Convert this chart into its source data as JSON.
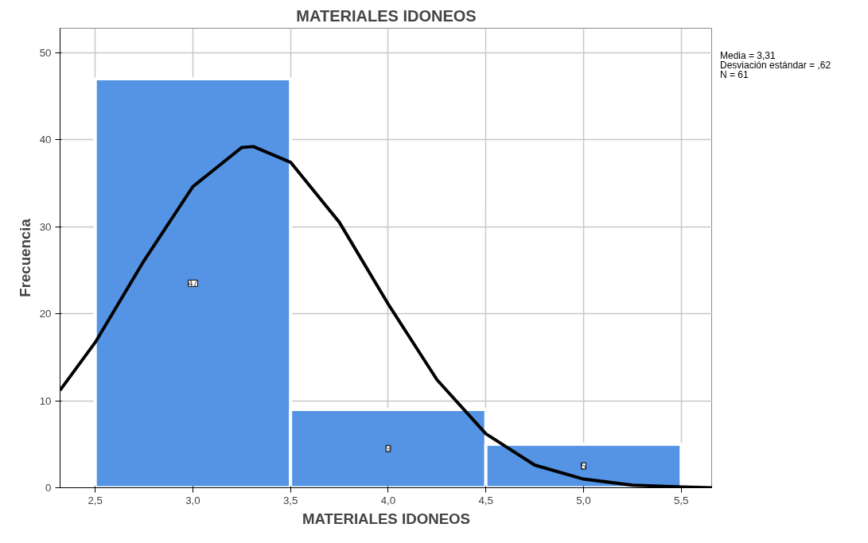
{
  "chart_data": {
    "type": "histogram",
    "title": "MATERIALES IDONEOS",
    "xlabel": "MATERIALES IDONEOS",
    "ylabel": "Frecuencia",
    "bins": [
      2.5,
      3.5,
      4.5,
      5.5
    ],
    "values": [
      47,
      9,
      5
    ],
    "color": "#5593e4",
    "value_labels": [
      "47",
      "9",
      "5"
    ],
    "series": [
      {
        "type": "line",
        "color": "#000000",
        "x": [
          2.32,
          2.5,
          2.75,
          3.0,
          3.25,
          3.31,
          3.5,
          3.75,
          4.0,
          4.25,
          4.5,
          4.75,
          5.0,
          5.25,
          5.5,
          5.66
        ],
        "values": [
          11.2,
          16.7,
          26.1,
          34.6,
          39.1,
          39.2,
          37.4,
          30.5,
          21.1,
          12.4,
          6.2,
          2.6,
          1.0,
          0.3,
          0.1,
          0.0
        ]
      }
    ],
    "xlim": [
      2.32,
      5.66
    ],
    "ylim": [
      0,
      52.8
    ],
    "xticks": [
      {
        "value": 2.5,
        "label": "2,5"
      },
      {
        "value": 3.0,
        "label": "3,0"
      },
      {
        "value": 3.5,
        "label": "3,5"
      },
      {
        "value": 4.0,
        "label": "4,0"
      },
      {
        "value": 4.5,
        "label": "4,5"
      },
      {
        "value": 5.0,
        "label": "5,0"
      },
      {
        "value": 5.5,
        "label": "5,5"
      }
    ],
    "yticks": [
      0,
      10,
      20,
      30,
      40,
      50
    ],
    "grid": true,
    "annotations": [
      "Media = 3,31",
      "Desviación estándar = ,62",
      "N = 61"
    ]
  }
}
